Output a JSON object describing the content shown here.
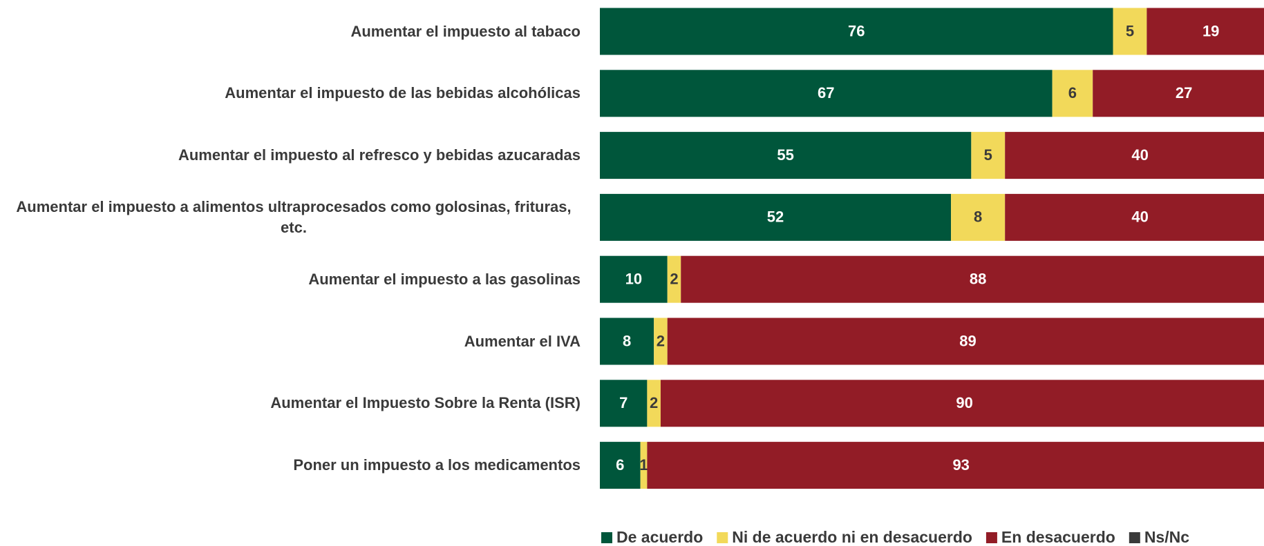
{
  "chart_data": {
    "type": "stacked_barh",
    "categories": [
      "Aumentar el impuesto al tabaco",
      "Aumentar el impuesto de las bebidas alcohólicas",
      "Aumentar el impuesto al refresco y bebidas azucaradas",
      "Aumentar el impuesto a alimentos ultraprocesados como golosinas, frituras, etc.",
      "Aumentar el impuesto a las gasolinas",
      "Aumentar el IVA",
      "Aumentar el Impuesto Sobre la Renta (ISR)",
      "Poner un impuesto a los medicamentos"
    ],
    "series": [
      {
        "name": "De acuerdo",
        "color": "#00563b",
        "label_color": "#ffffff",
        "values": [
          76,
          67,
          55,
          52,
          10,
          8,
          7,
          6
        ]
      },
      {
        "name": "Ni de acuerdo ni en desacuerdo",
        "color": "#f2d95a",
        "label_color": "#3a3a3a",
        "values": [
          5,
          6,
          5,
          8,
          2,
          2,
          2,
          1
        ]
      },
      {
        "name": "En desacuerdo",
        "color": "#921c26",
        "label_color": "#ffffff",
        "values": [
          19,
          27,
          40,
          40,
          88,
          89,
          90,
          93
        ]
      },
      {
        "name": "Ns/Nc",
        "color": "#3a3a3a",
        "label_color": "#ffffff",
        "values": [
          null,
          null,
          null,
          null,
          null,
          1,
          1,
          null
        ]
      }
    ],
    "xlim": [
      0,
      100
    ]
  }
}
